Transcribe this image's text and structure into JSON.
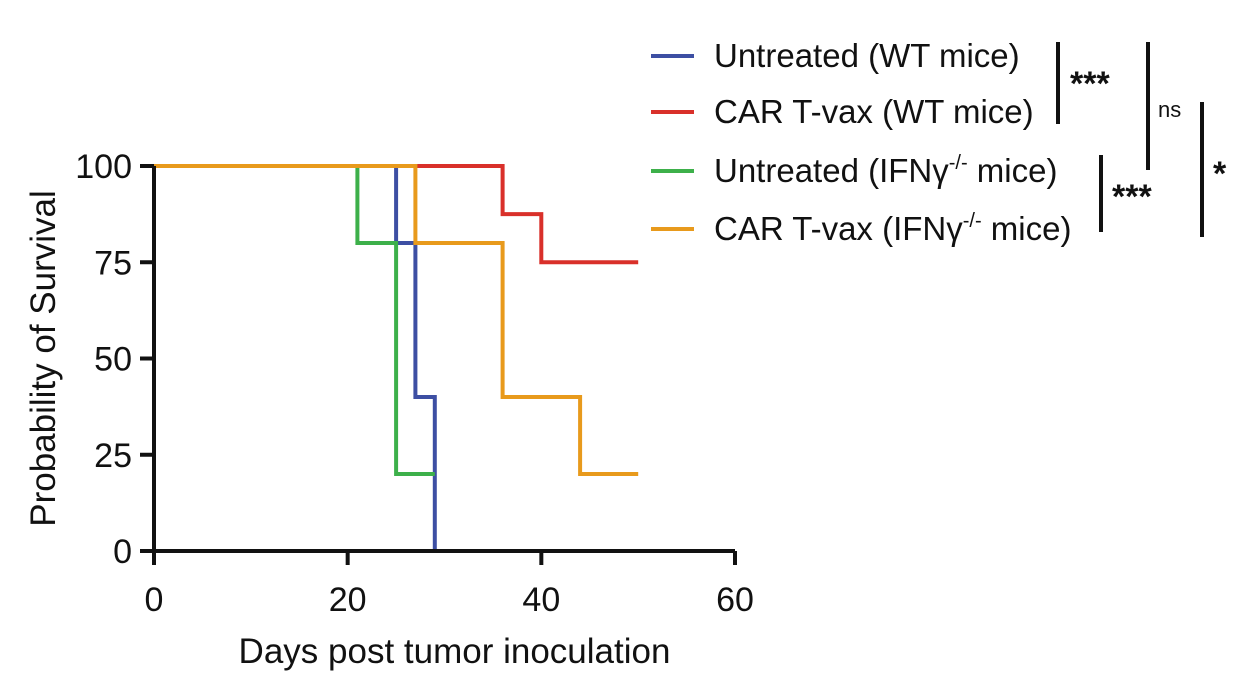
{
  "chart_data": {
    "type": "line",
    "subtype": "kaplan-meier-survival",
    "xlabel": "Days post tumor inoculation",
    "ylabel": "Probability of Survival",
    "xlim": [
      0,
      60
    ],
    "ylim": [
      0,
      100
    ],
    "xticks": [
      0,
      20,
      40,
      60
    ],
    "yticks": [
      0,
      25,
      50,
      75,
      100
    ],
    "xtick_labels": [
      "0",
      "20",
      "40",
      "60"
    ],
    "ytick_labels": [
      "0",
      "25",
      "50",
      "75",
      "100"
    ],
    "grid": false,
    "legend_position": "top-right",
    "series": [
      {
        "name": "Untreated (WT mice)",
        "label_parts": [
          "Untreated (WT mice)"
        ],
        "color": "#3d4fa3",
        "x": [
          0,
          25,
          25,
          27,
          27,
          29,
          29
        ],
        "y": [
          100,
          100,
          80,
          80,
          40,
          40,
          0
        ]
      },
      {
        "name": "CAR T-vax (WT mice)",
        "label_parts": [
          "CAR T-vax (WT mice)"
        ],
        "color": "#d9302a",
        "x": [
          0,
          36,
          36,
          40,
          40,
          50
        ],
        "y": [
          100,
          100,
          87.5,
          87.5,
          75,
          75
        ]
      },
      {
        "name": "Untreated (IFNγ-/- mice)",
        "label_parts": [
          "Untreated (IFNγ",
          "-/-",
          " mice)"
        ],
        "color": "#3db04a",
        "x": [
          0,
          21,
          21,
          25,
          25,
          29
        ],
        "y": [
          100,
          100,
          80,
          80,
          20,
          20
        ]
      },
      {
        "name": "CAR T-vax (IFNγ-/- mice)",
        "label_parts": [
          "CAR T-vax (IFNγ",
          "-/-",
          " mice)"
        ],
        "color": "#e89a1c",
        "x": [
          0,
          27,
          27,
          36,
          36,
          44,
          44,
          50
        ],
        "y": [
          100,
          100,
          80,
          80,
          40,
          40,
          20,
          20
        ]
      }
    ],
    "significance": [
      {
        "between": [
          0,
          1
        ],
        "label": "***"
      },
      {
        "between": [
          2,
          3
        ],
        "label": "***"
      },
      {
        "between": [
          0,
          2
        ],
        "label": "ns"
      },
      {
        "between": [
          1,
          3
        ],
        "label": "*"
      }
    ]
  }
}
